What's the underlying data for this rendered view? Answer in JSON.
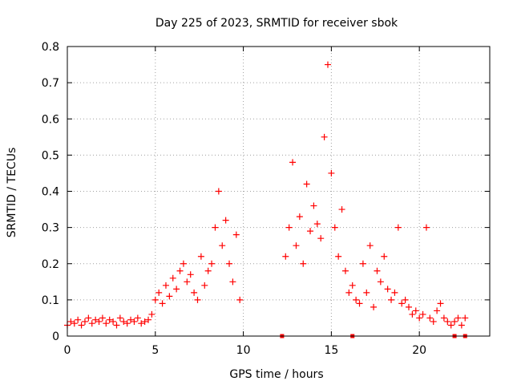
{
  "chart_data": {
    "type": "scatter",
    "title": "Day 225 of 2023, SRMTID for receiver sbok",
    "xlabel": "GPS time / hours",
    "ylabel": "SRMTID / TECUs",
    "xlim": [
      0,
      24
    ],
    "ylim": [
      0,
      0.8
    ],
    "x_ticks": [
      0,
      5,
      10,
      15,
      20
    ],
    "x_tick_labels": [
      "0",
      "5",
      "10",
      "15",
      "20"
    ],
    "y_ticks": [
      0,
      0.1,
      0.2,
      0.3,
      0.4,
      0.5,
      0.6,
      0.7,
      0.8
    ],
    "y_tick_labels": [
      "0",
      "0.1",
      "0.2",
      "0.3",
      "0.4",
      "0.5",
      "0.6",
      "0.7",
      "0.8"
    ],
    "grid": true,
    "marker": "plus",
    "color": "#ff0000",
    "series": [
      {
        "name": "SRMTID",
        "x": [
          0.0,
          0.2,
          0.4,
          0.6,
          0.8,
          1.0,
          1.2,
          1.4,
          1.6,
          1.8,
          2.0,
          2.2,
          2.4,
          2.6,
          2.8,
          3.0,
          3.2,
          3.4,
          3.6,
          3.8,
          4.0,
          4.2,
          4.4,
          4.6,
          4.8,
          5.0,
          5.2,
          5.4,
          5.6,
          5.8,
          6.0,
          6.2,
          6.4,
          6.6,
          6.8,
          7.0,
          7.2,
          7.4,
          7.6,
          7.8,
          8.0,
          8.2,
          8.4,
          8.6,
          8.8,
          9.0,
          9.2,
          9.4,
          9.6,
          9.8,
          12.4,
          12.6,
          12.8,
          13.0,
          13.2,
          13.4,
          13.6,
          13.8,
          14.0,
          14.2,
          14.4,
          14.6,
          14.8,
          15.0,
          15.2,
          15.4,
          15.6,
          15.8,
          16.0,
          16.2,
          16.4,
          16.6,
          16.8,
          17.0,
          17.2,
          17.4,
          17.6,
          17.8,
          18.0,
          18.2,
          18.4,
          18.6,
          18.8,
          19.0,
          19.2,
          19.4,
          19.6,
          19.8,
          20.0,
          20.2,
          20.4,
          20.6,
          20.8,
          21.0,
          21.2,
          21.4,
          21.6,
          21.8,
          22.0,
          22.2,
          22.4,
          22.6
        ],
        "y": [
          0.03,
          0.04,
          0.035,
          0.045,
          0.03,
          0.04,
          0.05,
          0.035,
          0.045,
          0.04,
          0.05,
          0.035,
          0.045,
          0.04,
          0.03,
          0.05,
          0.04,
          0.035,
          0.045,
          0.04,
          0.05,
          0.035,
          0.04,
          0.045,
          0.06,
          0.1,
          0.12,
          0.09,
          0.14,
          0.11,
          0.16,
          0.13,
          0.18,
          0.2,
          0.15,
          0.17,
          0.12,
          0.1,
          0.22,
          0.14,
          0.18,
          0.2,
          0.3,
          0.4,
          0.25,
          0.32,
          0.2,
          0.15,
          0.28,
          0.1,
          0.22,
          0.3,
          0.48,
          0.25,
          0.33,
          0.2,
          0.42,
          0.29,
          0.36,
          0.31,
          0.27,
          0.55,
          0.75,
          0.45,
          0.3,
          0.22,
          0.35,
          0.18,
          0.12,
          0.14,
          0.1,
          0.09,
          0.2,
          0.12,
          0.25,
          0.08,
          0.18,
          0.15,
          0.22,
          0.13,
          0.1,
          0.12,
          0.3,
          0.09,
          0.1,
          0.08,
          0.06,
          0.07,
          0.05,
          0.06,
          0.3,
          0.05,
          0.04,
          0.07,
          0.09,
          0.05,
          0.04,
          0.03,
          0.04,
          0.05,
          0.03,
          0.05
        ],
        "zero_markers_x": [
          12.2,
          16.2,
          22.0,
          22.6
        ]
      }
    ]
  }
}
